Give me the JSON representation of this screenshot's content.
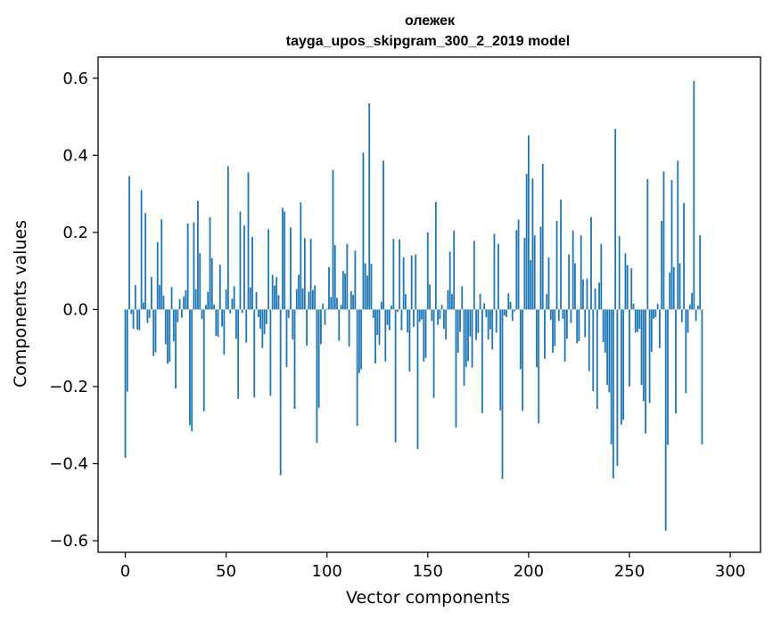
{
  "chart_data": {
    "type": "bar",
    "title": "олежек",
    "subtitle": "tayga_upos_skipgram_300_2_2019 model",
    "xlabel": "Vector components",
    "ylabel": "Components values",
    "xlim": [
      -13.5,
      315
    ],
    "ylim": [
      -0.63,
      0.655
    ],
    "xticks": [
      0,
      50,
      100,
      150,
      200,
      250,
      300
    ],
    "yticks": [
      -0.6,
      -0.4,
      -0.2,
      0.0,
      0.2,
      0.4,
      0.6
    ],
    "ytick_labels": [
      "−0.6",
      "−0.4",
      "−0.2",
      "0.0",
      "0.2",
      "0.4",
      "0.6"
    ],
    "grid": false,
    "bar_color": "#1f77b4",
    "values": [
      -0.385,
      -0.213,
      0.346,
      -0.012,
      -0.05,
      0.063,
      -0.052,
      -0.054,
      0.31,
      0.018,
      0.25,
      -0.035,
      -0.022,
      0.084,
      -0.121,
      -0.111,
      0.175,
      0.063,
      0.234,
      0.036,
      -0.09,
      -0.141,
      -0.136,
      0.058,
      -0.083,
      -0.205,
      -0.033,
      0.027,
      -0.021,
      0.034,
      0.05,
      0.223,
      -0.3,
      -0.316,
      0.226,
      0.053,
      0.282,
      0.146,
      -0.025,
      -0.264,
      0.012,
      0.046,
      0.24,
      0.133,
      0.013,
      -0.068,
      -0.071,
      0.116,
      -0.044,
      -0.117,
      0.052,
      0.372,
      -0.01,
      0.028,
      0.06,
      -0.076,
      -0.232,
      0.254,
      -0.009,
      0.218,
      -0.086,
      0.356,
      0.057,
      0.188,
      -0.228,
      0.045,
      -0.02,
      -0.05,
      -0.1,
      -0.064,
      -0.038,
      0.208,
      -0.224,
      0.09,
      0.062,
      0.084,
      0.037,
      -0.43,
      0.264,
      0.254,
      -0.15,
      -0.022,
      0.213,
      -0.078,
      -0.258,
      0.053,
      0.09,
      0.278,
      0.055,
      0.185,
      -0.094,
      0.046,
      0.183,
      0.05,
      0.062,
      -0.346,
      -0.255,
      -0.09,
      0.015,
      -0.04,
      0.002,
      0.11,
      0.032,
      0.362,
      0.167,
      0.03,
      -0.081,
      0.012,
      0.1,
      0.093,
      0.17,
      -0.096,
      0.047,
      0.038,
      0.153,
      -0.302,
      -0.165,
      -0.155,
      0.407,
      0.12,
      0.088,
      0.535,
      0.119,
      -0.022,
      -0.14,
      -0.066,
      -0.092,
      0.02,
      0.386,
      -0.135,
      -0.04,
      -0.054,
      0.01,
      0.183,
      -0.345,
      -0.006,
      0.182,
      -0.054,
      0.135,
      0.04,
      -0.06,
      -0.161,
      0.14,
      -0.045,
      0.143,
      -0.362,
      -0.032,
      -0.026,
      -0.135,
      -0.126,
      0.2,
      0.065,
      -0.03,
      -0.229,
      0.279,
      -0.04,
      -0.025,
      0.012,
      -0.05,
      -0.078,
      0.05,
      0.15,
      0.04,
      0.205,
      -0.306,
      -0.112,
      -0.058,
      0.06,
      -0.198,
      -0.149,
      -0.134,
      -0.07,
      -0.151,
      0.178,
      -0.079,
      -0.061,
      0.041,
      -0.269,
      0.016,
      -0.02,
      -0.078,
      -0.052,
      -0.104,
      0.196,
      -0.06,
      0.17,
      -0.262,
      -0.44,
      -0.016,
      -0.02,
      0.042,
      0.02,
      -0.03,
      -0.005,
      0.206,
      0.233,
      -0.155,
      -0.263,
      0.186,
      0.352,
      0.452,
      0.128,
      0.34,
      0.192,
      -0.15,
      -0.296,
      0.215,
      0.378,
      -0.128,
      0.04,
      0.135,
      -0.027,
      -0.112,
      -0.095,
      0.23,
      -0.03,
      0.285,
      -0.024,
      -0.135,
      -0.076,
      0.143,
      -0.035,
      0.205,
      0.12,
      -0.088,
      -0.082,
      0.192,
      0.078,
      -0.072,
      0.08,
      -0.16,
      0.24,
      -0.212,
      0.055,
      -0.258,
      0.07,
      0.17,
      -0.085,
      -0.112,
      -0.196,
      -0.215,
      -0.35,
      -0.438,
      0.468,
      -0.406,
      0.19,
      -0.299,
      -0.286,
      0.146,
      0.115,
      -0.2,
      0.107,
      0.015,
      -0.06,
      -0.058,
      -0.05,
      -0.196,
      -0.238,
      -0.322,
      0.338,
      -0.243,
      -0.11,
      -0.024,
      -0.02,
      0.015,
      -0.1,
      0.23,
      0.358,
      -0.574,
      -0.351,
      0.096,
      0.336,
      0.11,
      -0.27,
      0.386,
      0.12,
      -0.033,
      0.276,
      -0.217,
      -0.06,
      0.013,
      0.043,
      0.593,
      -0.03,
      0.01,
      0.193,
      -0.35
    ]
  }
}
